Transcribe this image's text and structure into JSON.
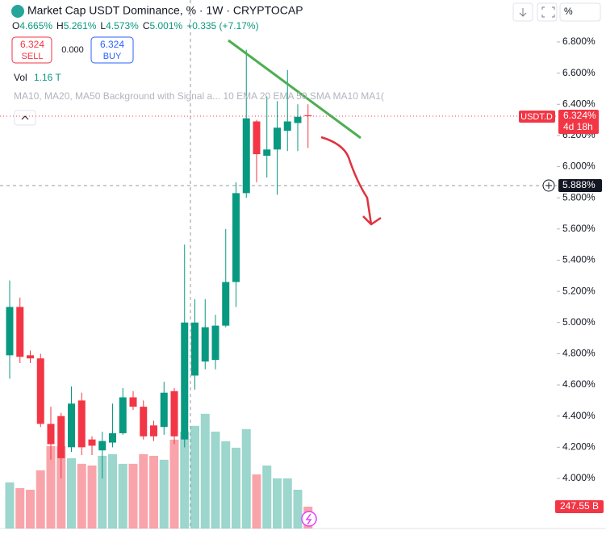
{
  "header": {
    "title": "Market Cap USDT Dominance, % · 1W · CRYPTOCAP",
    "ohlc": [
      {
        "key": "O",
        "value": "4.665%"
      },
      {
        "key": "H",
        "value": "5.261%"
      },
      {
        "key": "L",
        "value": "4.573%"
      },
      {
        "key": "C",
        "value": "5.001%"
      }
    ],
    "change": "+0.335 (+7.17%)",
    "sell_price": "6.324",
    "sell": "SELL",
    "spread": "0.000",
    "buy_price": "6.324",
    "buy": "BUY",
    "vol_label": "Vol",
    "vol_value": "1.16 T",
    "indicators": "MA10, MA20, MA50 Background with Signal a...   10 EMA 20 EMA 50 SMA MA10 MA1(",
    "unit_button": "%"
  },
  "chart_data": {
    "type": "candlestick",
    "up_color": "#089981",
    "down_color": "#f23645",
    "volume_up_color": "rgba(8,153,129,0.4)",
    "volume_down_color": "rgba(242,54,69,0.45)",
    "open": [
      4.79,
      5.1,
      4.79,
      4.77,
      4.35,
      4.4,
      4.2,
      4.5,
      4.25,
      4.18,
      4.23,
      4.29,
      4.52,
      4.46,
      4.34,
      4.33,
      4.56,
      4.25,
      4.66,
      4.75,
      4.76,
      4.98,
      5.26,
      5.83,
      6.29,
      6.07,
      6.11,
      6.23,
      6.28,
      6.33
    ],
    "high": [
      5.27,
      5.16,
      4.82,
      4.8,
      4.46,
      4.42,
      4.59,
      4.55,
      4.27,
      4.3,
      4.48,
      4.58,
      4.56,
      4.5,
      4.37,
      4.62,
      4.58,
      5.5,
      5.15,
      5.15,
      5.05,
      5.6,
      5.9,
      6.75,
      6.3,
      6.45,
      6.42,
      6.62,
      6.4,
      6.4
    ],
    "low": [
      4.64,
      4.74,
      4.74,
      4.33,
      4.12,
      4.0,
      4.17,
      4.15,
      4.15,
      4.0,
      4.2,
      4.28,
      4.44,
      4.25,
      4.24,
      4.28,
      4.22,
      4.2,
      4.57,
      4.7,
      4.7,
      4.97,
      5.1,
      5.8,
      5.9,
      5.93,
      5.82,
      6.1,
      6.1,
      6.12
    ],
    "close": [
      5.1,
      4.78,
      4.77,
      4.35,
      4.22,
      4.13,
      4.48,
      4.2,
      4.21,
      4.24,
      4.29,
      4.52,
      4.46,
      4.27,
      4.27,
      4.55,
      4.27,
      5.0,
      5.0,
      4.97,
      4.98,
      5.26,
      5.83,
      6.31,
      6.08,
      6.11,
      6.25,
      6.29,
      6.32,
      6.324
    ],
    "volume": [
      523,
      458,
      440,
      660,
      935,
      935,
      798,
      734,
      715,
      825,
      844,
      734,
      734,
      844,
      825,
      780,
      1009,
      1100,
      1165,
      1302,
      1100,
      990,
      917,
      1128,
      614,
      715,
      569,
      569,
      440,
      247.55
    ],
    "volume_last_label": "247.55 B",
    "volume_lim": [
      0,
      6000
    ],
    "ylim": [
      3.679,
      7.069
    ],
    "yticks": [
      {
        "value": 4.0,
        "label": "4.000%"
      },
      {
        "value": 4.2,
        "label": "4.200%"
      },
      {
        "value": 4.4,
        "label": "4.400%"
      },
      {
        "value": 4.6,
        "label": "4.600%"
      },
      {
        "value": 4.8,
        "label": "4.800%"
      },
      {
        "value": 5.0,
        "label": "5.000%"
      },
      {
        "value": 5.2,
        "label": "5.200%"
      },
      {
        "value": 5.4,
        "label": "5.400%"
      },
      {
        "value": 5.6,
        "label": "5.600%"
      },
      {
        "value": 5.8,
        "label": "5.800%"
      },
      {
        "value": 6.0,
        "label": "6.000%"
      },
      {
        "value": 6.2,
        "label": "6.200%"
      },
      {
        "value": 6.4,
        "label": "6.400%"
      },
      {
        "value": 6.6,
        "label": "6.600%"
      },
      {
        "value": 6.8,
        "label": "6.800%"
      }
    ],
    "symbol_label": "USDT.D",
    "last_price_label": "6.324%",
    "countdown": "4d 18h",
    "crosshair_label": "5.888%"
  }
}
